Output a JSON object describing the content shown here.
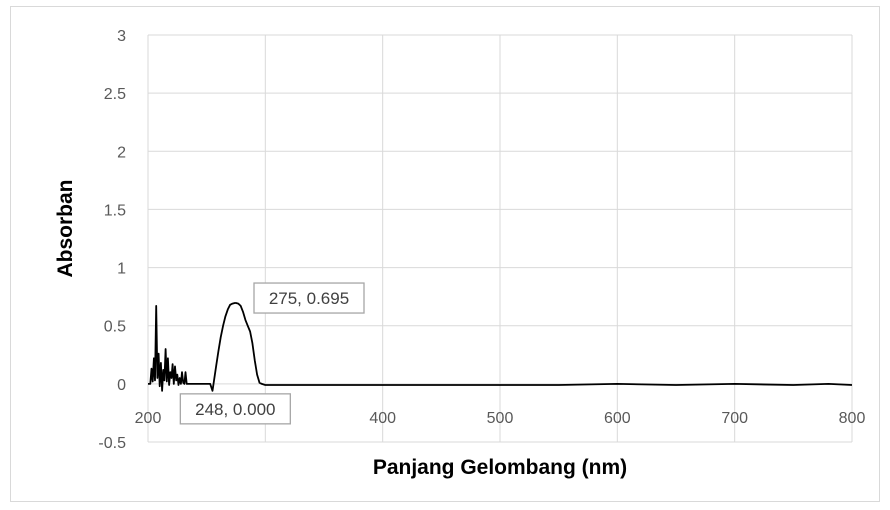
{
  "chart_data": {
    "type": "line",
    "xlabel": "Panjang Gelombang (nm)",
    "ylabel": "Absorban",
    "xlim": [
      200,
      800
    ],
    "ylim": [
      -0.5,
      3
    ],
    "x_ticks": [
      "200",
      "300",
      "400",
      "500",
      "600",
      "700",
      "800"
    ],
    "y_ticks": [
      "3",
      "2.5",
      "2",
      "1.5",
      "1",
      "0.5",
      "0",
      "-0.5"
    ],
    "grid": true,
    "legend": "none",
    "colors": {
      "line": "#000000",
      "grid": "#d9d9d9"
    },
    "series": [
      {
        "x": [
          200,
          202,
          203,
          204,
          205,
          206,
          207,
          208,
          209,
          210,
          211,
          212,
          213,
          214,
          215,
          216,
          217,
          218,
          219,
          220,
          221,
          222,
          223,
          224,
          225,
          226,
          227,
          228,
          229,
          230,
          231,
          232,
          233,
          234,
          236,
          240,
          245,
          250,
          253,
          255,
          258,
          260,
          262,
          264,
          266,
          268,
          270,
          272,
          274,
          275,
          277,
          279,
          281,
          283,
          285,
          287,
          289,
          291,
          293,
          295,
          297,
          300,
          320,
          350,
          380,
          400,
          450,
          500,
          550,
          600,
          650,
          700,
          750,
          780,
          800
        ],
        "y": [
          0.0,
          0.0,
          0.13,
          0.02,
          0.22,
          0.03,
          0.67,
          0.05,
          0.26,
          -0.02,
          0.18,
          -0.06,
          0.12,
          0.03,
          0.3,
          0.02,
          0.22,
          -0.01,
          0.1,
          0.05,
          0.17,
          0.0,
          0.15,
          0.03,
          0.08,
          -0.01,
          0.05,
          0.0,
          0.1,
          0.01,
          0.0,
          0.1,
          0.0,
          0.0,
          0.0,
          0.0,
          0.0,
          0.0,
          0.0,
          -0.06,
          0.15,
          0.28,
          0.4,
          0.5,
          0.58,
          0.64,
          0.68,
          0.69,
          0.695,
          0.695,
          0.69,
          0.67,
          0.62,
          0.55,
          0.5,
          0.45,
          0.35,
          0.2,
          0.08,
          0.01,
          0.0,
          -0.01,
          -0.01,
          -0.01,
          -0.01,
          -0.01,
          -0.01,
          -0.01,
          -0.01,
          0.0,
          -0.01,
          0.0,
          -0.01,
          0.0,
          -0.01
        ]
      }
    ],
    "annotations": [
      {
        "text": "275, 0.695",
        "x": 275,
        "y": 0.695
      },
      {
        "text": "248, 0.000",
        "x": 248,
        "y": 0.0
      }
    ]
  }
}
